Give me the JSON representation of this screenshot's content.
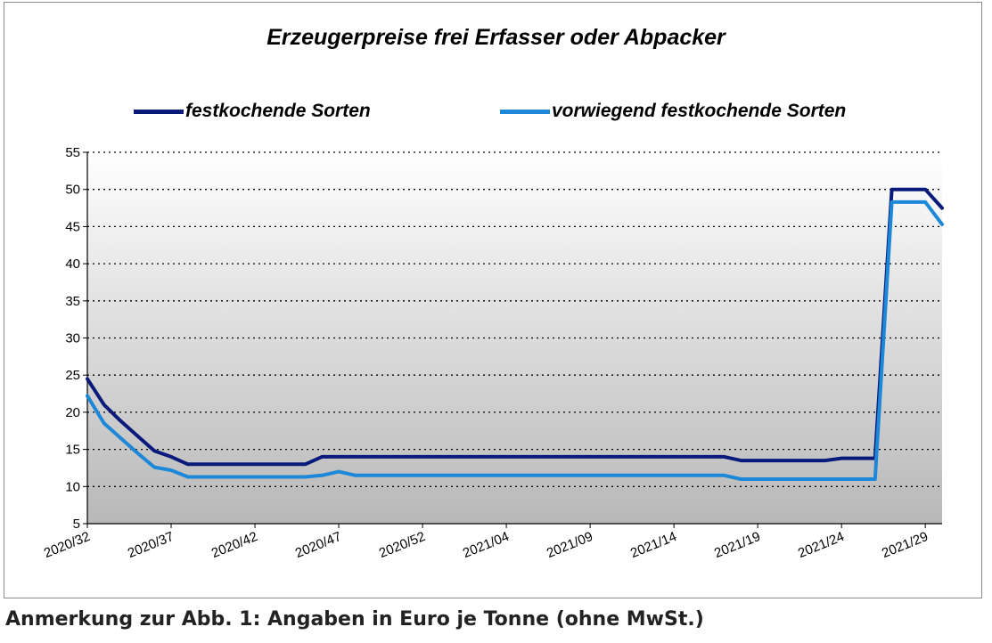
{
  "chart_data": {
    "type": "line",
    "title": "Erzeugerpreise frei Erfasser oder Abpacker",
    "xlabel": "",
    "ylabel": "",
    "ylim": [
      5,
      55
    ],
    "yticks": [
      "5",
      "10",
      "15",
      "20",
      "25",
      "30",
      "35",
      "40",
      "45",
      "50",
      "55"
    ],
    "x_tick_labels": [
      "2020/32",
      "2020/37",
      "2020/42",
      "2020/47",
      "2020/52",
      "2021/04",
      "2021/09",
      "2021/14",
      "2021/19",
      "2021/24",
      "2021/29"
    ],
    "x": [
      "2020/32",
      "2020/33",
      "2020/34",
      "2020/35",
      "2020/36",
      "2020/37",
      "2020/38",
      "2020/39",
      "2020/40",
      "2020/41",
      "2020/42",
      "2020/43",
      "2020/44",
      "2020/45",
      "2020/46",
      "2020/47",
      "2020/48",
      "2020/49",
      "2020/50",
      "2020/51",
      "2020/52",
      "2020/53",
      "2021/01",
      "2021/02",
      "2021/03",
      "2021/04",
      "2021/05",
      "2021/06",
      "2021/07",
      "2021/08",
      "2021/09",
      "2021/10",
      "2021/11",
      "2021/12",
      "2021/13",
      "2021/14",
      "2021/15",
      "2021/16",
      "2021/17",
      "2021/18",
      "2021/19",
      "2021/20",
      "2021/21",
      "2021/22",
      "2021/23",
      "2021/24",
      "2021/25",
      "2021/26",
      "2021/27",
      "2021/28",
      "2021/29",
      "2021/30"
    ],
    "series": [
      {
        "name": "festkochende Sorten",
        "color": "#0a1a7a",
        "values": [
          24.5,
          21,
          18.8,
          16.8,
          14.8,
          14,
          13,
          13,
          13,
          13,
          13,
          13,
          13,
          13,
          14,
          14,
          14,
          14,
          14,
          14,
          14,
          14,
          14,
          14,
          14,
          14,
          14,
          14,
          14,
          14,
          14,
          14,
          14,
          14,
          14,
          14,
          14,
          14,
          14,
          13.5,
          13.5,
          13.5,
          13.5,
          13.5,
          13.5,
          13.8,
          13.8,
          13.8,
          50,
          50,
          50,
          47.5
        ]
      },
      {
        "name": "vorwiegend festkochende Sorten",
        "color": "#1e88d8",
        "values": [
          22.2,
          18.5,
          16.5,
          14.5,
          12.6,
          12.2,
          11.3,
          11.3,
          11.3,
          11.3,
          11.3,
          11.3,
          11.3,
          11.3,
          11.5,
          12,
          11.5,
          11.5,
          11.5,
          11.5,
          11.5,
          11.5,
          11.5,
          11.5,
          11.5,
          11.5,
          11.5,
          11.5,
          11.5,
          11.5,
          11.5,
          11.5,
          11.5,
          11.5,
          11.5,
          11.5,
          11.5,
          11.5,
          11.5,
          11,
          11,
          11,
          11,
          11,
          11,
          11,
          11,
          11,
          48.3,
          48.3,
          48.3,
          45.3
        ]
      }
    ],
    "grid": true,
    "legend": "top"
  },
  "caption": "Anmerkung zur Abb. 1: Angaben in Euro je Tonne (ohne MwSt.)"
}
